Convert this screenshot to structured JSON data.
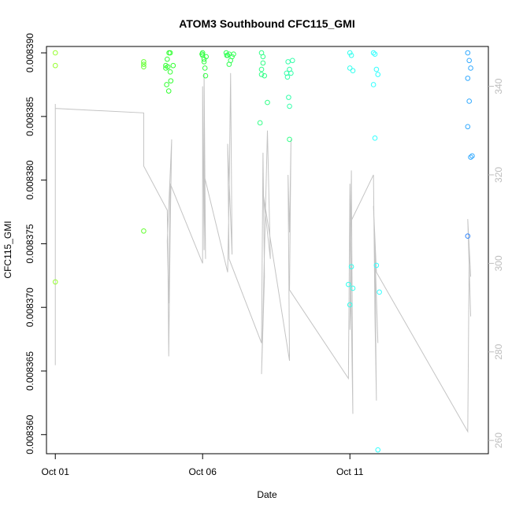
{
  "chart_data": {
    "type": "scatter",
    "title": "ATOM3 Southbound CFC115_GMI",
    "xlabel": "Date",
    "ylabel": "CFC115_GMI",
    "xlim": [
      -0.3,
      14.7
    ],
    "ylim": [
      0.0083585,
      0.0083905
    ],
    "x_ticks": [
      {
        "label": "Oct 01",
        "value": 0
      },
      {
        "label": "Oct 06",
        "value": 5
      },
      {
        "label": "Oct 11",
        "value": 10
      }
    ],
    "y_ticks": [
      {
        "label": "0.008360",
        "value": 0.00836
      },
      {
        "label": "0.008365",
        "value": 0.008365
      },
      {
        "label": "0.008370",
        "value": 0.00837
      },
      {
        "label": "0.008375",
        "value": 0.008375
      },
      {
        "label": "0.008380",
        "value": 0.00838
      },
      {
        "label": "0.008385",
        "value": 0.008385
      },
      {
        "label": "0.008390",
        "value": 0.00839
      }
    ],
    "y2lim": [
      257,
      349
    ],
    "y2_ticks": [
      {
        "label": "260",
        "value": 260
      },
      {
        "label": "280",
        "value": 280
      },
      {
        "label": "300",
        "value": 300
      },
      {
        "label": "320",
        "value": 320
      },
      {
        "label": "340",
        "value": 340
      }
    ],
    "grid": false,
    "legend": "none",
    "colors": {
      "trace": "#c4c4c4",
      "axis2": "#bdbdbd"
    },
    "series": [
      {
        "kind": "points",
        "axis": "left",
        "x": [
          0.0,
          0.0,
          0.0,
          3.0,
          3.0,
          3.0,
          3.0,
          3.75,
          3.8,
          3.9,
          3.75,
          3.85,
          3.9,
          4.0,
          3.82,
          3.78,
          3.92,
          3.86,
          5.0,
          5.05,
          5.0,
          5.08,
          5.1,
          5.12,
          5.05,
          4.98,
          5.8,
          5.9,
          6.0,
          5.85,
          5.95,
          6.05,
          5.82,
          5.9,
          7.0,
          7.05,
          7.1,
          7.2,
          6.95,
          7.0,
          7.05,
          7.0,
          7.95,
          7.9,
          7.85,
          7.95,
          8.05,
          7.88,
          7.92,
          8.0,
          7.95,
          10.0,
          10.05,
          10.1,
          10.0,
          10.05,
          9.95,
          10.1,
          10.0,
          10.8,
          10.85,
          10.9,
          10.95,
          10.8,
          10.85,
          10.9,
          11.0,
          10.95,
          14.0,
          14.05,
          14.1,
          14.0,
          14.05,
          14.0,
          14.1,
          14.15,
          14.0
        ],
        "y": [
          0.00839,
          0.008389,
          0.008372,
          0.0083893,
          0.0083889,
          0.0083891,
          0.008376,
          0.008389,
          0.0083895,
          0.00839,
          0.0083888,
          0.008387,
          0.0083885,
          0.008389,
          0.0083889,
          0.0083875,
          0.0083878,
          0.00839,
          0.00839,
          0.0083895,
          0.0083898,
          0.0083888,
          0.0083882,
          0.0083897,
          0.0083893,
          0.0083899,
          0.00839,
          0.0083899,
          0.0083897,
          0.0083898,
          0.0083894,
          0.0083899,
          0.0083898,
          0.0083891,
          0.00839,
          0.0083892,
          0.0083882,
          0.0083861,
          0.0083845,
          0.0083887,
          0.0083897,
          0.0083883,
          0.0083832,
          0.0083893,
          0.0083884,
          0.0083887,
          0.0083894,
          0.0083881,
          0.0083865,
          0.0083884,
          0.0083858,
          0.00839,
          0.0083898,
          0.0083886,
          0.0083888,
          0.0083732,
          0.0083718,
          0.0083715,
          0.0083702,
          0.00839,
          0.0083899,
          0.0083887,
          0.0083883,
          0.0083875,
          0.0083833,
          0.0083733,
          0.0083712,
          0.0083588,
          0.00839,
          0.0083894,
          0.0083888,
          0.008388,
          0.0083862,
          0.0083842,
          0.0083818,
          0.0083819,
          0.0083756
        ],
        "colors": [
          "#99ff33",
          "#99ff33",
          "#99ff33",
          "#66ff33",
          "#66ff33",
          "#66ff33",
          "#66ff33",
          "#33ff33",
          "#33ff33",
          "#33ff33",
          "#33ff33",
          "#33ff33",
          "#33ff33",
          "#33ff33",
          "#33ff33",
          "#33ff33",
          "#33ff33",
          "#33ff33",
          "#33ff44",
          "#33ff44",
          "#33ff44",
          "#33ff44",
          "#33ff44",
          "#33ff44",
          "#33ff44",
          "#33ff44",
          "#33ff55",
          "#33ff55",
          "#33ff55",
          "#33ff55",
          "#33ff55",
          "#33ff55",
          "#33ff55",
          "#33ff55",
          "#33ff88",
          "#33ff88",
          "#33ff88",
          "#33ff88",
          "#33ff88",
          "#33ff88",
          "#33ff88",
          "#33ff88",
          "#33ff88",
          "#33ffaa",
          "#33ffaa",
          "#33ffaa",
          "#33ffaa",
          "#33ffaa",
          "#33ffaa",
          "#33ffaa",
          "#33ffaa",
          "#33ffee",
          "#33ffee",
          "#33ffee",
          "#33ffee",
          "#33ffee",
          "#33ffee",
          "#33ffee",
          "#33ffee",
          "#33ffff",
          "#33ffff",
          "#33ffff",
          "#33ffff",
          "#33ffff",
          "#33ffff",
          "#33ffff",
          "#33ffff",
          "#33ffff",
          "#33aaff",
          "#33aaff",
          "#33aaff",
          "#33aaff",
          "#33aaff",
          "#33aaff",
          "#33aaff",
          "#33aaff",
          "#3388ff"
        ]
      },
      {
        "kind": "line",
        "axis": "right",
        "x": [
          0.0,
          0.0,
          0.0,
          3.0,
          3.0,
          3.0,
          3.0,
          3.8,
          3.82,
          3.85,
          3.9,
          3.95,
          3.8,
          3.85,
          3.9,
          5.0,
          5.0,
          5.05,
          5.05,
          5.1,
          5.05,
          5.85,
          5.9,
          5.95,
          6.0,
          5.85,
          5.9,
          7.0,
          7.05,
          7.1,
          7.0,
          7.2,
          7.3,
          7.05,
          7.95,
          7.9,
          7.95,
          8.0,
          7.95,
          9.95,
          10.0,
          10.05,
          10.0,
          10.05,
          10.1,
          10.0,
          10.8,
          10.85,
          10.9,
          10.85,
          10.95,
          10.8,
          10.9,
          14.0,
          14.05,
          14.1,
          14.0,
          14.1
        ],
        "y": [
          277,
          336,
          335,
          334,
          329,
          330,
          322,
          312,
          303,
          279,
          308,
          328,
          305,
          291,
          318,
          300,
          340,
          303,
          343,
          301,
          320,
          298,
          315,
          343,
          302,
          327,
          301,
          282,
          325,
          297,
          275,
          330,
          301,
          316,
          278,
          320,
          307,
          328,
          294,
          274,
          318,
          296,
          285,
          321,
          266,
          309,
          320,
          288,
          269,
          301,
          282,
          313,
          298,
          262,
          303,
          297,
          310,
          288
        ]
      }
    ]
  }
}
